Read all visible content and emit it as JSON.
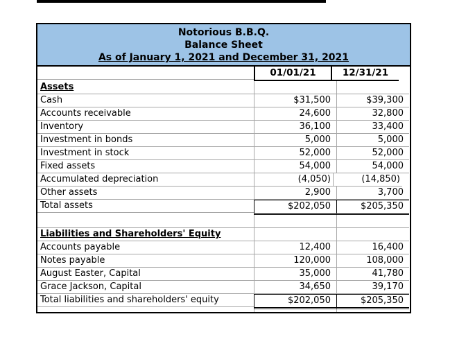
{
  "page": {
    "background": "#ffffff",
    "top_rule_color": "#000000"
  },
  "colors": {
    "table_border": "#000000",
    "gridline": "#a6a6a6",
    "title_background": "#9dc3e6",
    "text": "#000000"
  },
  "title_block": {
    "company": "Notorious B.B.Q.",
    "report": "Balance Sheet",
    "period": "As of January 1, 2021 and December 31, 2021"
  },
  "columns": [
    "01/01/21",
    "12/31/21"
  ],
  "rows": [
    {
      "label": "Assets",
      "style": "section",
      "v1": "",
      "v2": ""
    },
    {
      "label": "Cash",
      "style": "data",
      "v1": "$31,500",
      "v2": "$39,300"
    },
    {
      "label": "Accounts receivable",
      "style": "data",
      "v1": "24,600",
      "v2": "32,800"
    },
    {
      "label": "Inventory",
      "style": "data",
      "v1": "36,100",
      "v2": "33,400"
    },
    {
      "label": "Investment in bonds",
      "style": "data",
      "v1": "5,000",
      "v2": "5,000"
    },
    {
      "label": "Investment in stock",
      "style": "data",
      "v1": "52,000",
      "v2": "52,000"
    },
    {
      "label": "Fixed assets",
      "style": "data",
      "v1": "54,000",
      "v2": "54,000"
    },
    {
      "label": "Accumulated depreciation",
      "style": "data",
      "v1": "(4,050)",
      "v2": "(14,850)"
    },
    {
      "label": "Other assets",
      "style": "data",
      "v1": "2,900",
      "v2": "3,700"
    },
    {
      "label": "Total assets",
      "style": "total",
      "v1": "$202,050",
      "v2": "$205,350"
    },
    {
      "label": "",
      "style": "blank",
      "v1": "",
      "v2": ""
    },
    {
      "label": "Liabilities and Shareholders' Equity",
      "style": "section",
      "v1": "",
      "v2": ""
    },
    {
      "label": "Accounts payable",
      "style": "data",
      "v1": "12,400",
      "v2": "16,400"
    },
    {
      "label": "Notes payable",
      "style": "data",
      "v1": "120,000",
      "v2": "108,000"
    },
    {
      "label": "August Easter, Capital",
      "style": "data",
      "v1": "35,000",
      "v2": "41,780"
    },
    {
      "label": "Grace Jackson, Capital",
      "style": "data",
      "v1": "34,650",
      "v2": "39,170"
    },
    {
      "label": "Total liabilities and shareholders' equity",
      "style": "total",
      "v1": "$202,050",
      "v2": "$205,350"
    },
    {
      "label": "",
      "style": "spacer",
      "v1": "",
      "v2": ""
    }
  ]
}
